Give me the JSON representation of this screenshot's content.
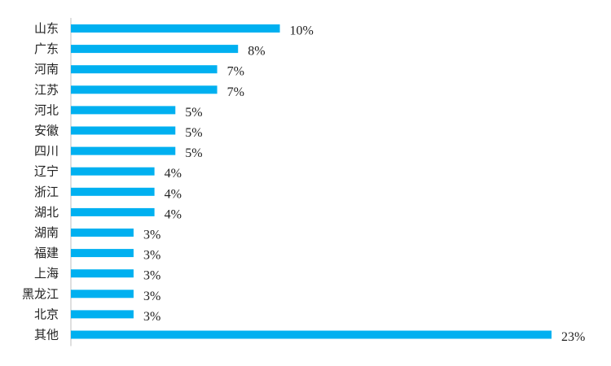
{
  "chart_data": {
    "type": "bar",
    "orientation": "horizontal",
    "categories": [
      "山东",
      "广东",
      "河南",
      "江苏",
      "河北",
      "安徽",
      "四川",
      "辽宁",
      "浙江",
      "湖北",
      "湖南",
      "福建",
      "上海",
      "黑龙江",
      "北京",
      "其他"
    ],
    "values": [
      10,
      8,
      7,
      7,
      5,
      5,
      5,
      4,
      4,
      4,
      3,
      3,
      3,
      3,
      3,
      23
    ],
    "value_labels": [
      "10%",
      "8%",
      "7%",
      "7%",
      "5%",
      "5%",
      "5%",
      "4%",
      "4%",
      "4%",
      "3%",
      "3%",
      "3%",
      "3%",
      "3%",
      "23%"
    ],
    "unit": "%",
    "xlim": [
      0,
      23
    ],
    "title": "",
    "xlabel": "",
    "ylabel": "",
    "grid": false,
    "legend": "none",
    "bar_color": "#00B0F0",
    "axis_color": "#BFBFBF"
  }
}
